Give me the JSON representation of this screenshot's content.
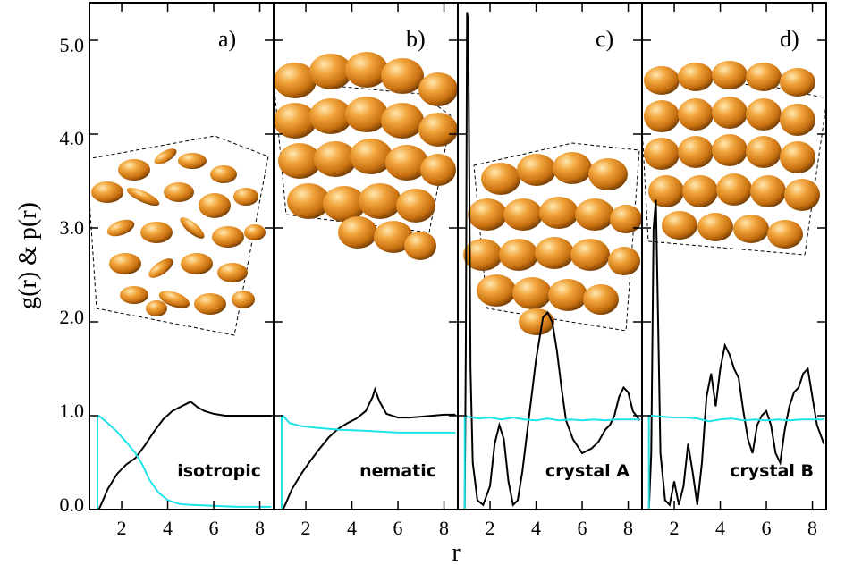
{
  "chart_data": {
    "type": "line",
    "ylabel": "g(r) & p(r)",
    "xlabel": "r",
    "ylim": [
      0,
      5.4
    ],
    "xlim": [
      0.6,
      8.6
    ],
    "y_ticks": [
      "0.0",
      "1.0",
      "2.0",
      "3.0",
      "4.0",
      "5.0"
    ],
    "y_tick_values": [
      0,
      1,
      2,
      3,
      4,
      5
    ],
    "x_ticks": [
      "2",
      "4",
      "6",
      "8"
    ],
    "x_tick_values": [
      2,
      4,
      6,
      8
    ],
    "colors": {
      "g": "#000000",
      "p": "#1ee3e8",
      "particle": "#e08a1c"
    },
    "panels": [
      {
        "label": "a)",
        "phase": "isotropic",
        "series": [
          {
            "key": "g",
            "x": [
              1.0,
              1.1,
              1.4,
              1.8,
              2.2,
              2.6,
              3.0,
              3.4,
              3.8,
              4.2,
              4.6,
              5.0,
              5.3,
              5.6,
              6.0,
              6.5,
              7.0,
              7.5,
              8.0,
              8.5
            ],
            "y": [
              0.0,
              0.05,
              0.22,
              0.38,
              0.48,
              0.55,
              0.68,
              0.83,
              0.96,
              1.05,
              1.1,
              1.15,
              1.09,
              1.05,
              1.02,
              1.0,
              1.0,
              1.0,
              1.0,
              1.0
            ]
          },
          {
            "key": "p",
            "x": [
              0.95,
              0.95,
              1.0,
              1.4,
              1.8,
              2.2,
              2.6,
              2.9,
              3.2,
              3.6,
              4.0,
              4.5,
              5.0,
              6.0,
              7.0,
              8.0,
              8.5
            ],
            "y": [
              0.0,
              1.0,
              1.0,
              0.92,
              0.83,
              0.72,
              0.6,
              0.48,
              0.32,
              0.18,
              0.1,
              0.06,
              0.05,
              0.04,
              0.03,
              0.03,
              0.03
            ]
          }
        ]
      },
      {
        "label": "b)",
        "phase": "nematic",
        "series": [
          {
            "key": "g",
            "x": [
              1.0,
              1.1,
              1.4,
              1.8,
              2.2,
              2.6,
              3.0,
              3.4,
              3.8,
              4.2,
              4.6,
              4.9,
              5.0,
              5.2,
              5.5,
              6.0,
              6.5,
              7.0,
              7.5,
              8.0,
              8.5
            ],
            "y": [
              0.0,
              0.05,
              0.22,
              0.38,
              0.52,
              0.65,
              0.77,
              0.86,
              0.92,
              0.97,
              1.05,
              1.2,
              1.28,
              1.15,
              1.02,
              0.98,
              0.98,
              0.99,
              1.0,
              1.01,
              1.01
            ]
          },
          {
            "key": "p",
            "x": [
              0.95,
              0.95,
              1.0,
              1.3,
              1.8,
              2.5,
              3.5,
              4.5,
              6.0,
              8.5
            ],
            "y": [
              0.0,
              1.0,
              1.0,
              0.92,
              0.89,
              0.87,
              0.85,
              0.84,
              0.82,
              0.82
            ]
          }
        ]
      },
      {
        "label": "c)",
        "phase": "crystal A",
        "series": [
          {
            "key": "g",
            "x": [
              0.9,
              0.95,
              1.0,
              1.05,
              1.1,
              1.15,
              1.25,
              1.45,
              1.7,
              2.0,
              2.2,
              2.4,
              2.6,
              2.8,
              3.0,
              3.2,
              3.4,
              3.7,
              4.0,
              4.3,
              4.5,
              4.7,
              4.9,
              5.1,
              5.3,
              5.6,
              6.0,
              6.4,
              6.7,
              7.0,
              7.2,
              7.4,
              7.6,
              7.8,
              8.0,
              8.2,
              8.5
            ],
            "y": [
              0.0,
              1.8,
              5.3,
              5.2,
              3.5,
              1.5,
              0.5,
              0.1,
              0.05,
              0.25,
              0.7,
              0.9,
              0.75,
              0.3,
              0.05,
              0.1,
              0.4,
              1.0,
              1.6,
              2.05,
              2.1,
              2.0,
              1.7,
              1.3,
              0.95,
              0.75,
              0.6,
              0.65,
              0.72,
              0.85,
              0.9,
              1.0,
              1.2,
              1.3,
              1.25,
              1.05,
              0.95
            ]
          },
          {
            "key": "p",
            "x": [
              0.9,
              0.9,
              1.0,
              1.5,
              2.0,
              2.5,
              3.0,
              3.5,
              4.0,
              4.5,
              5.0,
              5.5,
              6.0,
              6.5,
              7.0,
              7.5,
              8.0,
              8.5
            ],
            "y": [
              0.0,
              1.0,
              0.99,
              0.97,
              0.98,
              0.96,
              0.98,
              0.96,
              0.95,
              0.97,
              0.95,
              0.96,
              0.95,
              0.96,
              0.95,
              0.96,
              0.96,
              0.96
            ]
          }
        ]
      },
      {
        "label": "d)",
        "phase": "crystal B",
        "series": [
          {
            "key": "g",
            "x": [
              0.9,
              1.0,
              1.1,
              1.2,
              1.3,
              1.4,
              1.6,
              1.8,
              2.0,
              2.2,
              2.4,
              2.6,
              2.8,
              3.0,
              3.2,
              3.4,
              3.6,
              3.8,
              4.0,
              4.2,
              4.4,
              4.6,
              4.8,
              5.0,
              5.2,
              5.4,
              5.6,
              5.8,
              6.0,
              6.2,
              6.4,
              6.6,
              6.8,
              7.0,
              7.2,
              7.4,
              7.6,
              7.8,
              8.0,
              8.2,
              8.5
            ],
            "y": [
              0.0,
              0.6,
              3.0,
              3.3,
              2.0,
              0.6,
              0.1,
              0.05,
              0.3,
              0.05,
              0.25,
              0.7,
              0.4,
              0.05,
              0.5,
              1.2,
              1.45,
              1.1,
              1.5,
              1.75,
              1.65,
              1.5,
              1.4,
              1.05,
              0.75,
              0.6,
              0.9,
              1.0,
              1.05,
              0.9,
              0.6,
              0.5,
              0.85,
              1.1,
              1.25,
              1.3,
              1.45,
              1.5,
              1.2,
              0.9,
              0.7
            ]
          },
          {
            "key": "p",
            "x": [
              0.9,
              0.9,
              1.0,
              1.5,
              2.0,
              2.5,
              3.0,
              3.5,
              4.0,
              4.5,
              5.0,
              5.5,
              6.0,
              6.5,
              7.0,
              7.5,
              8.0,
              8.5
            ],
            "y": [
              0.0,
              1.0,
              1.0,
              0.99,
              0.98,
              0.98,
              0.97,
              0.94,
              0.96,
              0.97,
              0.95,
              0.96,
              0.95,
              0.96,
              0.95,
              0.96,
              0.96,
              0.96
            ]
          }
        ]
      }
    ]
  }
}
